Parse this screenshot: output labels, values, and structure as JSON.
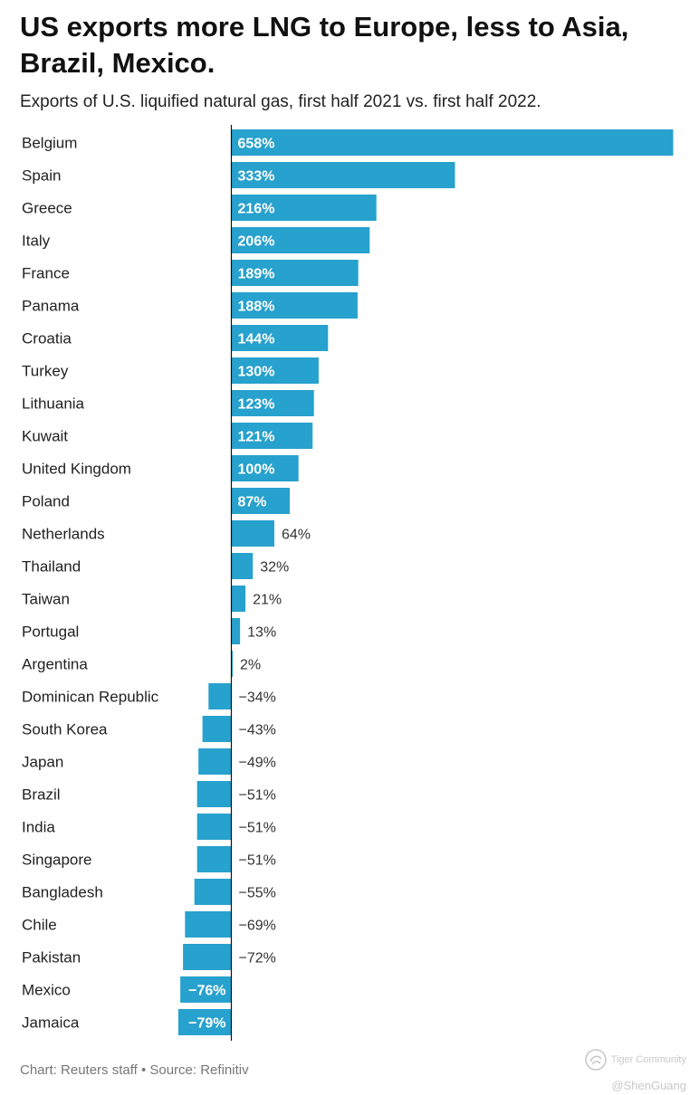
{
  "header": {
    "title": "US exports more LNG to Europe, less to Asia, Brazil, Mexico.",
    "subtitle": "Exports of U.S. liquified natural gas, first half 2021 vs. first half 2022."
  },
  "chart_data": {
    "type": "bar",
    "orientation": "horizontal",
    "title": "US exports more LNG to Europe, less to Asia, Brazil, Mexico.",
    "subtitle": "Exports of U.S. liquified natural gas, first half 2021 vs. first half 2022.",
    "xlabel": "",
    "ylabel": "",
    "value_suffix": "%",
    "categories": [
      "Belgium",
      "Spain",
      "Greece",
      "Italy",
      "France",
      "Panama",
      "Croatia",
      "Turkey",
      "Lithuania",
      "Kuwait",
      "United Kingdom",
      "Poland",
      "Netherlands",
      "Thailand",
      "Taiwan",
      "Portugal",
      "Argentina",
      "Dominican Republic",
      "South Korea",
      "Japan",
      "Brazil",
      "India",
      "Singapore",
      "Bangladesh",
      "Chile",
      "Pakistan",
      "Mexico",
      "Jamaica"
    ],
    "values": [
      658,
      333,
      216,
      206,
      189,
      188,
      144,
      130,
      123,
      121,
      100,
      87,
      64,
      32,
      21,
      13,
      2,
      -34,
      -43,
      -49,
      -51,
      -51,
      -51,
      -55,
      -69,
      -72,
      -76,
      -79
    ],
    "labels": [
      "658%",
      "333%",
      "216%",
      "206%",
      "189%",
      "188%",
      "144%",
      "130%",
      "123%",
      "121%",
      "100%",
      "87%",
      "64%",
      "32%",
      "21%",
      "13%",
      "2%",
      "−34%",
      "−43%",
      "−49%",
      "−51%",
      "−51%",
      "−51%",
      "−55%",
      "−69%",
      "−72%",
      "−76%",
      "−79%"
    ],
    "xlim": [
      -79,
      658
    ],
    "grid": false,
    "legend": "none",
    "bar_color": "#27a1cd"
  },
  "footer": {
    "credit": "Chart: Reuters staff • Source: Refinitiv"
  },
  "watermark": {
    "brand": "Tiger Community",
    "handle": "@ShenGuang",
    "icon": "tiger-logo-icon"
  }
}
